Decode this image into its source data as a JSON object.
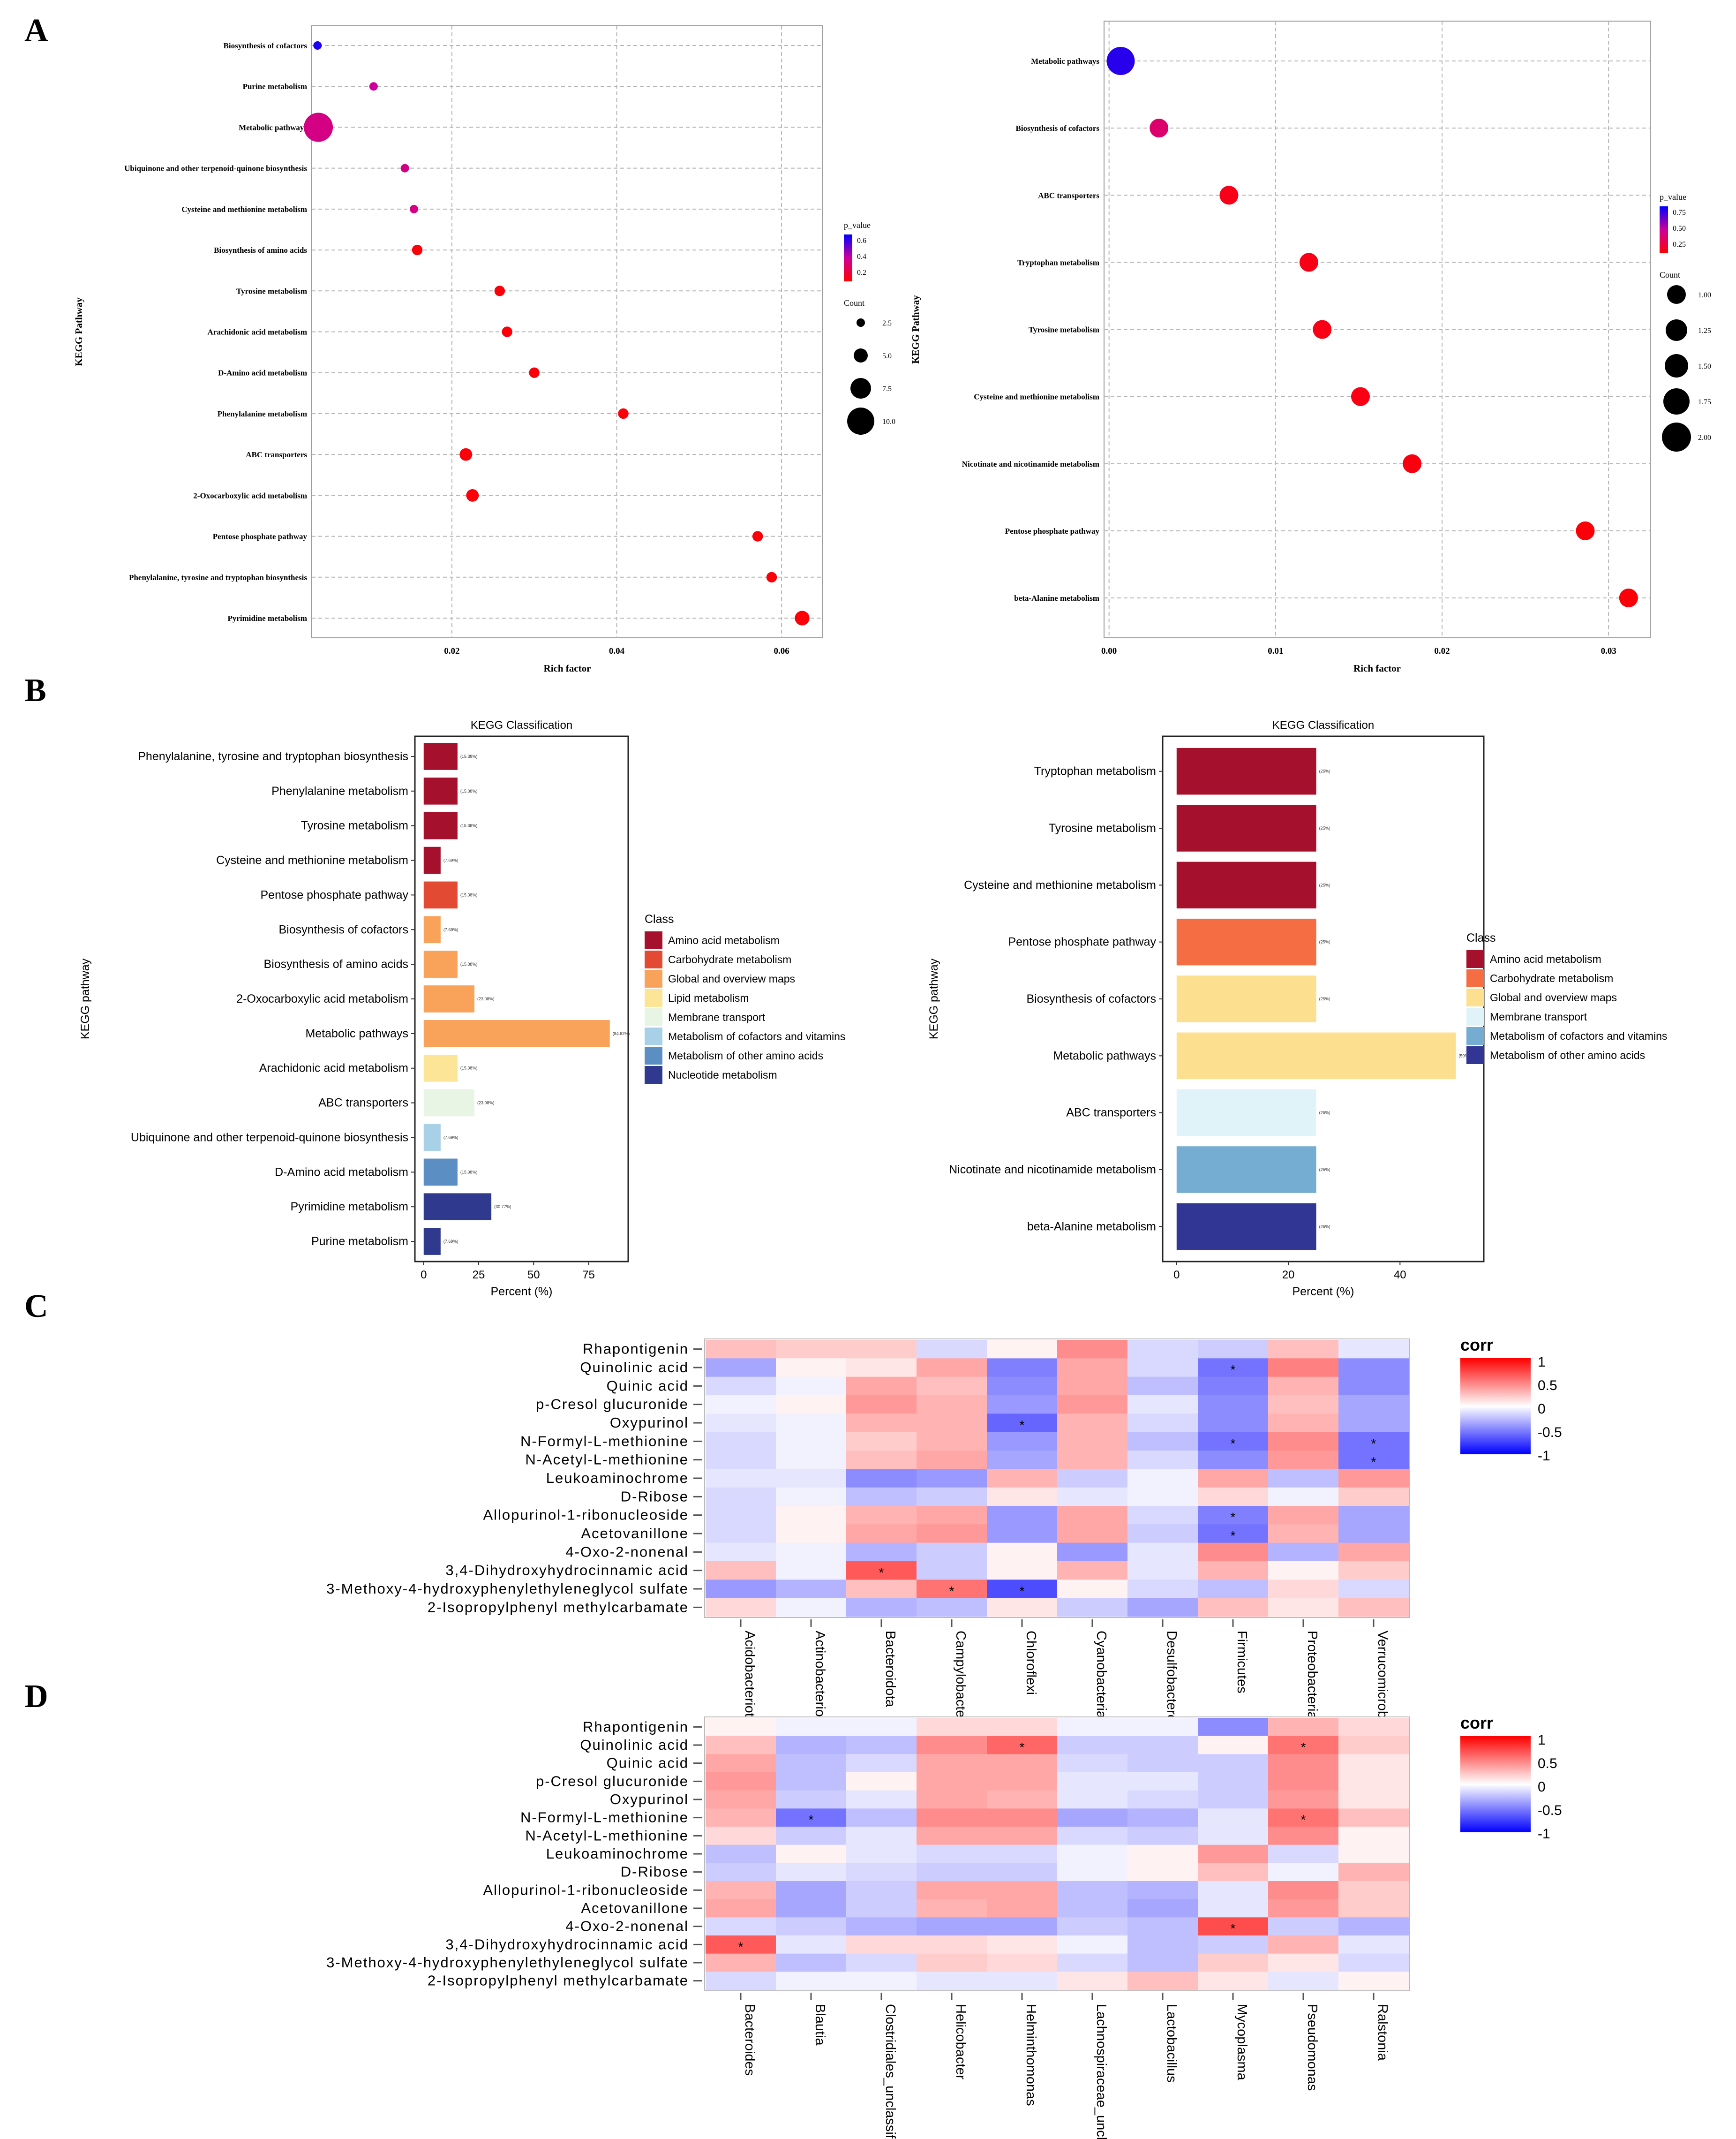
{
  "panel_letters": [
    "A",
    "B",
    "C",
    "D"
  ],
  "chart_data": [
    {
      "id": "A_left",
      "type": "scatter",
      "title": "",
      "xlabel": "Rich factor",
      "ylabel": "KEGG Pathway",
      "xlim": [
        0.003,
        0.065
      ],
      "xticks": [
        0.02,
        0.04,
        0.06
      ],
      "xtick_labels": [
        "0.02",
        "0.04",
        "0.06"
      ],
      "categories": [
        "Biosynthesis of cofactors",
        "Purine metabolism",
        "Metabolic pathways",
        "Ubiquinone and other terpenoid-quinone biosynthesis",
        "Cysteine and methionine metabolism",
        "Biosynthesis of amino acids",
        "Tyrosine metabolism",
        "Arachidonic acid metabolism",
        "D-Amino acid metabolism",
        "Phenylalanine metabolism",
        "ABC transporters",
        "2-Oxocarboxylic acid metabolism",
        "Pentose phosphate pathway",
        "Phenylalanine, tyrosine and tryptophan biosynthesis",
        "Pyrimidine metabolism"
      ],
      "x": [
        0.0037,
        0.0105,
        0.0038,
        0.0143,
        0.0154,
        0.0158,
        0.0258,
        0.0267,
        0.03,
        0.0408,
        0.0217,
        0.0225,
        0.0571,
        0.0588,
        0.0625
      ],
      "count": [
        1,
        1,
        11,
        1,
        1,
        2,
        2,
        2,
        2,
        2,
        3,
        3,
        2,
        2,
        4
      ],
      "p_value": [
        0.65,
        0.35,
        0.3,
        0.3,
        0.3,
        0.02,
        0.02,
        0.02,
        0.02,
        0.02,
        0.02,
        0.02,
        0.02,
        0.02,
        0.02
      ],
      "pvalue_legend": {
        "title": "p_value",
        "ticks": [
          "0.6",
          "0.4",
          "0.2"
        ]
      },
      "count_legend": {
        "title": "Count",
        "ticks": [
          "2.5",
          "5.0",
          "7.5",
          "10.0"
        ]
      }
    },
    {
      "id": "A_right",
      "type": "scatter",
      "title": "",
      "xlabel": "Rich factor",
      "ylabel": "KEGG Pathway",
      "xlim": [
        -0.0003,
        0.0325
      ],
      "xticks": [
        0.0,
        0.01,
        0.02,
        0.03
      ],
      "xtick_labels": [
        "0.00",
        "0.01",
        "0.02",
        "0.03"
      ],
      "categories": [
        "Metabolic pathways",
        "Biosynthesis of cofactors",
        "ABC transporters",
        "Tryptophan metabolism",
        "Tyrosine metabolism",
        "Cysteine and methionine metabolism",
        "Nicotinate and nicotinamide metabolism",
        "Pentose phosphate pathway",
        "beta-Alanine metabolism"
      ],
      "x": [
        0.0007,
        0.003,
        0.0072,
        0.012,
        0.0128,
        0.0151,
        0.0182,
        0.0286,
        0.0312
      ],
      "count": [
        2,
        1,
        1,
        1,
        1,
        1,
        1,
        1,
        1
      ],
      "p_value": [
        0.9,
        0.35,
        0.08,
        0.07,
        0.07,
        0.06,
        0.05,
        0.03,
        0.03
      ],
      "pvalue_legend": {
        "title": "p_value",
        "ticks": [
          "0.75",
          "0.50",
          "0.25"
        ]
      },
      "count_legend": {
        "title": "Count",
        "ticks": [
          "1.00",
          "1.25",
          "1.50",
          "1.75",
          "2.00"
        ]
      }
    },
    {
      "id": "B_left",
      "type": "bar",
      "orientation": "horizontal",
      "title": "KEGG Classification",
      "xlabel": "Percent (%)",
      "ylabel": "KEGG pathway",
      "xlim": [
        -4,
        93
      ],
      "xticks": [
        0,
        25,
        50,
        75
      ],
      "categories": [
        "Phenylalanine, tyrosine and tryptophan biosynthesis",
        "Phenylalanine metabolism",
        "Tyrosine metabolism",
        "Cysteine and methionine metabolism",
        "Pentose phosphate pathway",
        "Biosynthesis of cofactors",
        "Biosynthesis of amino acids",
        "2-Oxocarboxylic acid metabolism",
        "Metabolic pathways",
        "Arachidonic acid metabolism",
        "ABC transporters",
        "Ubiquinone and other terpenoid-quinone biosynthesis",
        "D-Amino acid metabolism",
        "Pyrimidine metabolism",
        "Purine metabolism"
      ],
      "values": [
        15.38,
        15.38,
        15.38,
        7.69,
        15.38,
        7.69,
        15.38,
        23.08,
        84.62,
        15.38,
        23.08,
        7.69,
        15.38,
        30.77,
        7.69
      ],
      "value_labels": [
        "(15.38%)",
        "(15.38%)",
        "(15.38%)",
        "(7.69%)",
        "(15.38%)",
        "(7.69%)",
        "(15.38%)",
        "(23.08%)",
        "(84.62%)",
        "(15.38%)",
        "(23.08%)",
        "(7.69%)",
        "(15.38%)",
        "(30.77%)",
        "(7.69%)"
      ],
      "classes": [
        "Amino acid metabolism",
        "Amino acid metabolism",
        "Amino acid metabolism",
        "Amino acid metabolism",
        "Carbohydrate metabolism",
        "Global and overview maps",
        "Global and overview maps",
        "Global and overview maps",
        "Global and overview maps",
        "Lipid metabolism",
        "Membrane transport",
        "Metabolism of cofactors and vitamins",
        "Metabolism of other amino acids",
        "Nucleotide metabolism",
        "Nucleotide metabolism"
      ],
      "legend_title": "Class",
      "legend": [
        "Amino acid metabolism",
        "Carbohydrate metabolism",
        "Global and overview maps",
        "Lipid metabolism",
        "Membrane transport",
        "Metabolism of cofactors and vitamins",
        "Metabolism of other amino acids",
        "Nucleotide metabolism"
      ]
    },
    {
      "id": "B_right",
      "type": "bar",
      "orientation": "horizontal",
      "title": "KEGG Classification",
      "xlabel": "Percent (%)",
      "ylabel": "KEGG pathway",
      "xlim": [
        -2.5,
        55
      ],
      "xticks": [
        0,
        20,
        40
      ],
      "categories": [
        "Tryptophan metabolism",
        "Tyrosine metabolism",
        "Cysteine and methionine metabolism",
        "Pentose phosphate pathway",
        "Biosynthesis of cofactors",
        "Metabolic pathways",
        "ABC transporters",
        "Nicotinate and nicotinamide metabolism",
        "beta-Alanine metabolism"
      ],
      "values": [
        25,
        25,
        25,
        25,
        25,
        50,
        25,
        25,
        25
      ],
      "value_labels": [
        "(25%)",
        "(25%)",
        "(25%)",
        "(25%)",
        "(25%)",
        "(50%)",
        "(25%)",
        "(25%)",
        "(25%)"
      ],
      "classes": [
        "Amino acid metabolism",
        "Amino acid metabolism",
        "Amino acid metabolism",
        "Carbohydrate metabolism",
        "Global and overview maps",
        "Global and overview maps",
        "Membrane transport",
        "Metabolism of cofactors and vitamins",
        "Metabolism of other amino acids"
      ],
      "legend_title": "Class",
      "legend": [
        "Amino acid metabolism",
        "Carbohydrate metabolism",
        "Global and overview maps",
        "Membrane transport",
        "Metabolism of cofactors and vitamins",
        "Metabolism of other amino acids"
      ]
    },
    {
      "id": "C",
      "type": "heatmap",
      "rows": [
        "Rhapontigenin",
        "Quinolinic acid",
        "Quinic acid",
        "p-Cresol glucuronide",
        "Oxypurinol",
        "N-Formyl-L-methionine",
        "N-Acetyl-L-methionine",
        "Leukoaminochrome",
        "D-Ribose",
        "Allopurinol-1-ribonucleoside",
        "Acetovanillone",
        "4-Oxo-2-nonenal",
        "3,4-Dihydroxyhydrocinnamic acid",
        "3-Methoxy-4-hydroxyphenylethyleneglycol sulfate",
        "2-Isopropylphenyl methylcarbamate"
      ],
      "columns": [
        "Acidobacteriota",
        "Actinobacteriota",
        "Bacteroidota",
        "Campylobacterota",
        "Chloroflexi",
        "Cyanobacteria",
        "Desulfobacterota",
        "Firmicutes",
        "Proteobacteria",
        "Verrucomicrobiota"
      ],
      "values": [
        [
          0.25,
          0.2,
          0.2,
          -0.15,
          0.05,
          0.45,
          -0.15,
          -0.2,
          0.25,
          -0.1
        ],
        [
          -0.35,
          0.05,
          0.1,
          0.35,
          -0.5,
          0.35,
          -0.15,
          -0.55,
          0.5,
          -0.45
        ],
        [
          -0.15,
          -0.05,
          0.35,
          0.25,
          -0.45,
          0.35,
          -0.25,
          -0.5,
          0.3,
          -0.45
        ],
        [
          -0.05,
          0.05,
          0.4,
          0.3,
          -0.4,
          0.4,
          -0.1,
          -0.45,
          0.25,
          -0.35
        ],
        [
          -0.1,
          -0.05,
          0.3,
          0.3,
          -0.6,
          0.3,
          -0.15,
          -0.45,
          0.3,
          -0.35
        ],
        [
          -0.15,
          -0.05,
          0.2,
          0.3,
          -0.4,
          0.3,
          -0.25,
          -0.55,
          0.45,
          -0.55
        ],
        [
          -0.15,
          -0.05,
          0.25,
          0.35,
          -0.35,
          0.3,
          -0.15,
          -0.45,
          0.4,
          -0.55
        ],
        [
          -0.1,
          -0.1,
          -0.45,
          -0.4,
          0.3,
          -0.2,
          -0.05,
          0.35,
          -0.25,
          0.4
        ],
        [
          -0.15,
          -0.05,
          -0.25,
          -0.2,
          0.1,
          -0.1,
          -0.05,
          0.15,
          -0.05,
          0.2
        ],
        [
          -0.15,
          0.05,
          0.3,
          0.35,
          -0.4,
          0.35,
          -0.15,
          -0.5,
          0.35,
          -0.35
        ],
        [
          -0.15,
          0.05,
          0.35,
          0.4,
          -0.4,
          0.35,
          -0.2,
          -0.55,
          0.3,
          -0.35
        ],
        [
          -0.1,
          -0.05,
          -0.3,
          -0.2,
          0.05,
          -0.4,
          -0.1,
          0.45,
          -0.3,
          0.35
        ],
        [
          0.25,
          -0.05,
          0.65,
          -0.2,
          0.05,
          0.3,
          -0.1,
          0.3,
          0.05,
          0.2
        ],
        [
          -0.4,
          -0.3,
          0.25,
          0.55,
          -0.7,
          0.05,
          -0.15,
          -0.25,
          0.15,
          -0.15
        ],
        [
          0.15,
          -0.05,
          -0.3,
          -0.25,
          0.1,
          -0.2,
          -0.35,
          0.25,
          0.1,
          0.25
        ]
      ],
      "significant": [
        [
          1,
          7
        ],
        [
          4,
          4
        ],
        [
          5,
          7
        ],
        [
          5,
          9
        ],
        [
          6,
          9
        ],
        [
          9,
          7
        ],
        [
          10,
          7
        ],
        [
          12,
          2
        ],
        [
          13,
          3
        ],
        [
          13,
          4
        ]
      ],
      "significance_mark": "*",
      "legend_title": "corr",
      "legend_ticks": [
        "1",
        "0.5",
        "0",
        "-0.5",
        "-1"
      ]
    },
    {
      "id": "D",
      "type": "heatmap",
      "rows": [
        "Rhapontigenin",
        "Quinolinic acid",
        "Quinic acid",
        "p-Cresol glucuronide",
        "Oxypurinol",
        "N-Formyl-L-methionine",
        "N-Acetyl-L-methionine",
        "Leukoaminochrome",
        "D-Ribose",
        "Allopurinol-1-ribonucleoside",
        "Acetovanillone",
        "4-Oxo-2-nonenal",
        "3,4-Dihydroxyhydrocinnamic acid",
        "3-Methoxy-4-hydroxyphenylethyleneglycol sulfate",
        "2-Isopropylphenyl methylcarbamate"
      ],
      "columns": [
        "Bacteroides",
        "Blautia",
        "Clostridiales_unclassified",
        "Helicobacter",
        "Helminthomonas",
        "Lachnospiraceae_unclassified",
        "Lactobacillus",
        "Mycoplasma",
        "Pseudomonas",
        "Ralstonia"
      ],
      "values": [
        [
          0.05,
          -0.05,
          -0.05,
          0.15,
          0.15,
          -0.05,
          -0.05,
          -0.45,
          0.3,
          0.15
        ],
        [
          0.25,
          -0.3,
          -0.25,
          0.45,
          0.6,
          -0.2,
          -0.2,
          0.05,
          0.55,
          0.2
        ],
        [
          0.35,
          -0.25,
          -0.15,
          0.35,
          0.35,
          -0.15,
          -0.2,
          -0.2,
          0.45,
          0.1
        ],
        [
          0.4,
          -0.25,
          0.05,
          0.35,
          0.35,
          -0.1,
          -0.1,
          -0.2,
          0.45,
          0.1
        ],
        [
          0.35,
          -0.2,
          -0.1,
          0.35,
          0.3,
          -0.1,
          -0.15,
          -0.2,
          0.4,
          0.1
        ],
        [
          0.3,
          -0.55,
          -0.25,
          0.45,
          0.45,
          -0.35,
          -0.3,
          -0.1,
          0.55,
          0.25
        ],
        [
          0.15,
          -0.2,
          -0.1,
          0.35,
          0.35,
          -0.15,
          -0.2,
          -0.1,
          0.45,
          0.05
        ],
        [
          -0.25,
          0.05,
          -0.1,
          -0.15,
          -0.15,
          -0.05,
          0.05,
          0.4,
          -0.15,
          0.05
        ],
        [
          -0.2,
          -0.1,
          -0.15,
          -0.2,
          -0.2,
          -0.05,
          0.05,
          0.25,
          -0.05,
          0.3
        ],
        [
          0.3,
          -0.35,
          -0.2,
          0.35,
          0.35,
          -0.25,
          -0.3,
          -0.1,
          0.45,
          0.2
        ],
        [
          0.35,
          -0.35,
          -0.2,
          0.3,
          0.35,
          -0.25,
          -0.35,
          -0.1,
          0.4,
          0.2
        ],
        [
          -0.15,
          -0.2,
          -0.3,
          -0.35,
          -0.35,
          -0.2,
          -0.25,
          0.7,
          -0.2,
          -0.3
        ],
        [
          0.65,
          -0.1,
          0.15,
          0.15,
          0.1,
          -0.05,
          -0.25,
          -0.2,
          0.3,
          -0.1
        ],
        [
          0.3,
          -0.25,
          -0.15,
          0.2,
          0.15,
          -0.15,
          -0.25,
          0.2,
          0.1,
          -0.15
        ],
        [
          -0.15,
          -0.05,
          -0.05,
          -0.1,
          -0.1,
          0.1,
          0.25,
          0.1,
          -0.1,
          0.05
        ]
      ],
      "significant": [
        [
          1,
          4
        ],
        [
          1,
          8
        ],
        [
          5,
          1
        ],
        [
          5,
          8
        ],
        [
          11,
          7
        ],
        [
          12,
          0
        ]
      ],
      "significance_mark": "*",
      "legend_title": "corr",
      "legend_ticks": [
        "1",
        "0.5",
        "0",
        "-0.5",
        "-1"
      ]
    }
  ],
  "colors": {
    "class_colors": {
      "Amino acid metabolism": "#a5112d",
      "Carbohydrate metabolism": "#e24a33",
      "Global and overview maps": "#f9a25a",
      "Lipid metabolism": "#fce596",
      "Membrane transport": "#e8f4e4",
      "Metabolism of cofactors and vitamins": "#a8d0e6",
      "Metabolism of other amino acids": "#5b8ec3",
      "Nucleotide metabolism": "#2f3a8f"
    },
    "class_colors_right": {
      "Amino acid metabolism": "#a5112d",
      "Carbohydrate metabolism": "#f46d43",
      "Global and overview maps": "#fde08f",
      "Membrane transport": "#e0f3f8",
      "Metabolism of cofactors and vitamins": "#74add1",
      "Metabolism of other amino acids": "#313695"
    }
  }
}
